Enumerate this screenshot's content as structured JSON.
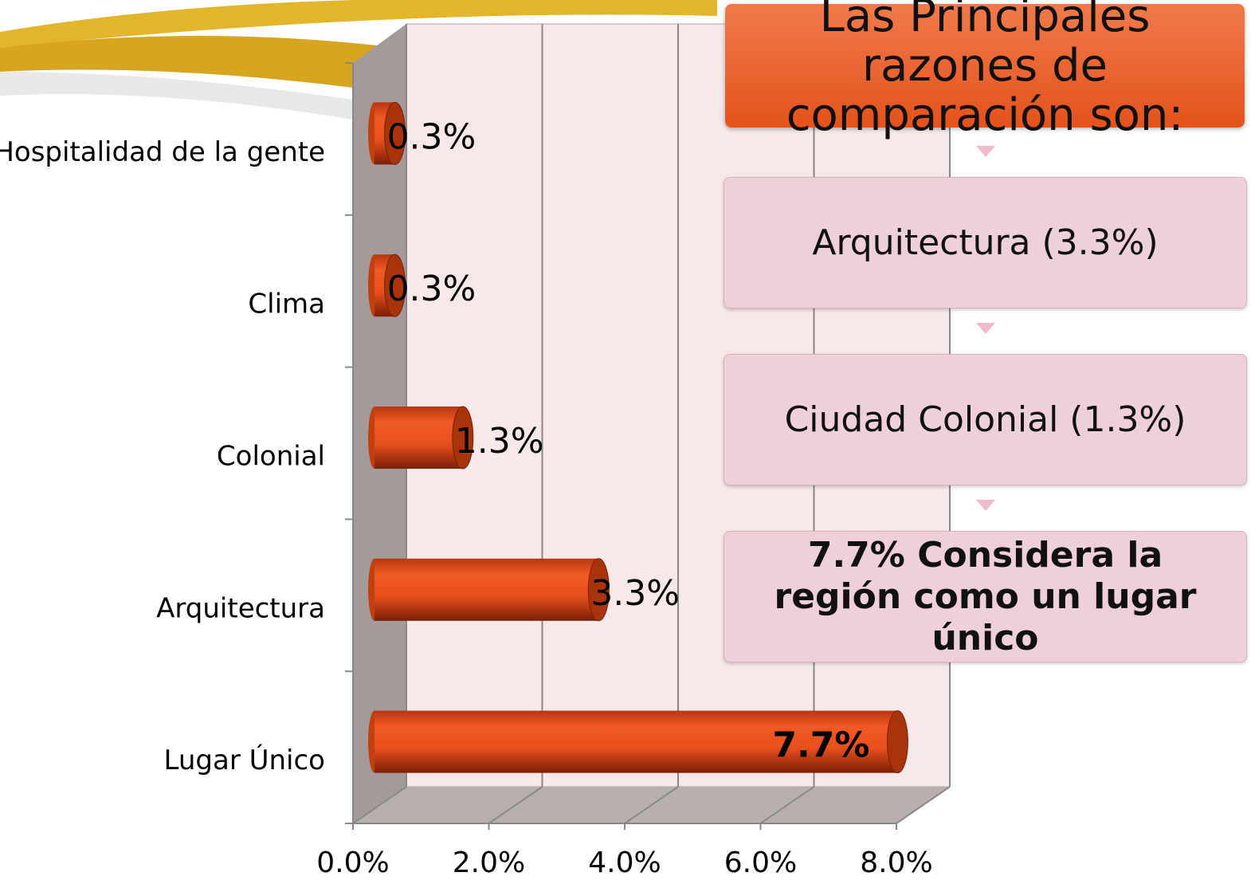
{
  "chart_data": {
    "type": "bar",
    "orientation": "horizontal",
    "categories": [
      "Hospitalidad de la gente",
      "Clima",
      "Colonial",
      "Arquitectura",
      "Lugar Único"
    ],
    "values": [
      0.3,
      0.3,
      1.3,
      3.3,
      7.7
    ],
    "value_labels": [
      "0.3%",
      "0.3%",
      "1.3%",
      "3.3%",
      "7.7%"
    ],
    "color": "#e8501e",
    "xlim": [
      0,
      8
    ],
    "xticks": [
      {
        "value": 0,
        "label": "0.0%"
      },
      {
        "value": 2,
        "label": "2.0%"
      },
      {
        "value": 4,
        "label": "4.0%"
      },
      {
        "value": 6,
        "label": "6.0%"
      },
      {
        "value": 8,
        "label": "8.0%"
      }
    ],
    "grid": true
  },
  "callouts": {
    "title": "Las Principales razones de comparación son:",
    "steps": [
      "Arquitectura (3.3%)",
      "Ciudad Colonial (1.3%)",
      "7.7% Considera la región como un lugar único"
    ]
  }
}
